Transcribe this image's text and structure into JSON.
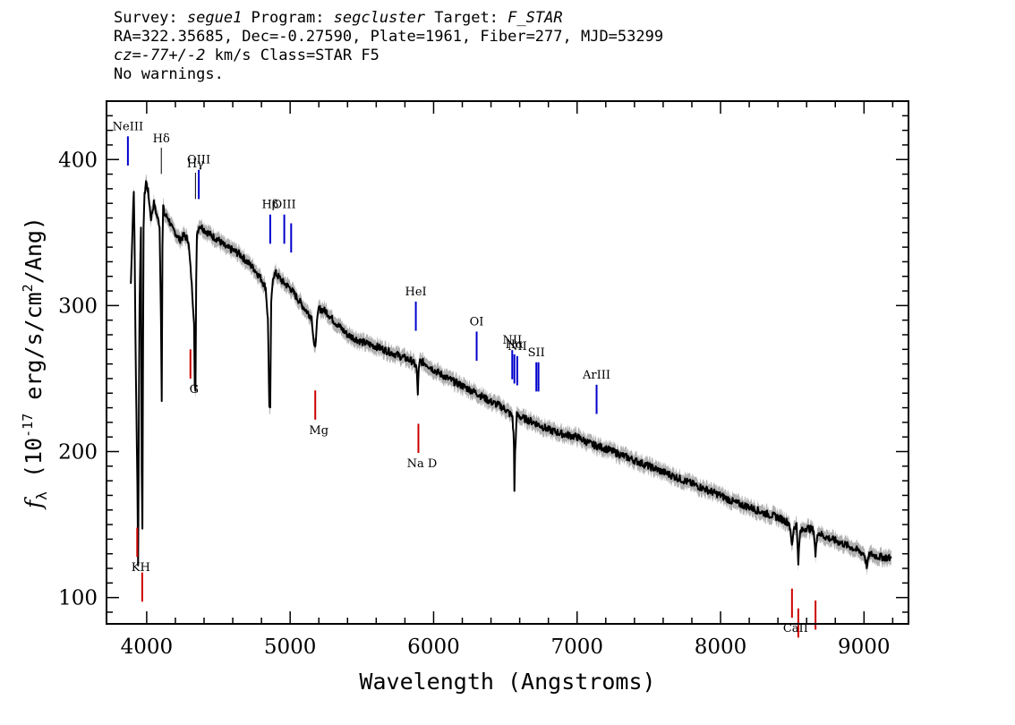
{
  "header": {
    "line1": {
      "survey_label": "Survey: ",
      "survey": "segue1",
      "program_label": " Program: ",
      "program": "segcluster",
      "target_label": " Target: ",
      "target": "F_STAR"
    },
    "line2": "RA=322.35685, Dec=-0.27590, Plate=1961, Fiber=277, MJD=53299",
    "line3": {
      "cz": "cz=-77+/-2",
      "rest": " km/s Class=STAR F5"
    },
    "line4": "No warnings."
  },
  "colors": {
    "spectrum": "#000000",
    "error_band": "#b0b0b0",
    "emission_line": "#0000cc",
    "absorption_line": "#cc0000",
    "axes": "#000000"
  },
  "chart_data": {
    "type": "line",
    "title": "",
    "xlabel": "Wavelength (Angstroms)",
    "ylabel": "f_λ (10^-17 erg/s/cm^2/Ang)",
    "xlim": [
      3720,
      9310
    ],
    "ylim": [
      82,
      440
    ],
    "xticks": [
      4000,
      5000,
      6000,
      7000,
      8000,
      9000
    ],
    "yticks": [
      100,
      200,
      300,
      400
    ],
    "grid": false,
    "series": [
      {
        "name": "",
        "x": [
          3890,
          3900,
          3910,
          3915,
          3925,
          3935,
          3940,
          3950,
          3960,
          3965,
          3970,
          3978,
          3985,
          3995,
          4010,
          4030,
          4050,
          4070,
          4090,
          4100,
          4105,
          4110,
          4115,
          4125,
          4150,
          4180,
          4200,
          4230,
          4260,
          4290,
          4310,
          4330,
          4335,
          4340,
          4345,
          4350,
          4370,
          4400,
          4450,
          4500,
          4550,
          4600,
          4650,
          4700,
          4750,
          4800,
          4830,
          4845,
          4855,
          4861,
          4868,
          4880,
          4900,
          4950,
          5000,
          5050,
          5100,
          5150,
          5168,
          5175,
          5183,
          5200,
          5250,
          5300,
          5350,
          5400,
          5500,
          5600,
          5700,
          5800,
          5850,
          5880,
          5890,
          5896,
          5905,
          5950,
          6000,
          6100,
          6200,
          6300,
          6400,
          6450,
          6500,
          6530,
          6550,
          6560,
          6563,
          6568,
          6580,
          6620,
          6700,
          6800,
          6900,
          7000,
          7100,
          7200,
          7300,
          7400,
          7500,
          7600,
          7700,
          7800,
          7900,
          8000,
          8100,
          8200,
          8300,
          8400,
          8480,
          8498,
          8510,
          8530,
          8542,
          8555,
          8600,
          8650,
          8662,
          8675,
          8720,
          8800,
          8900,
          9000,
          9020,
          9040,
          9100,
          9190
        ],
        "values": [
          315,
          350,
          380,
          345,
          250,
          180,
          122,
          300,
          355,
          190,
          145,
          355,
          375,
          385,
          378,
          360,
          370,
          362,
          355,
          290,
          235,
          340,
          368,
          362,
          360,
          352,
          350,
          345,
          348,
          345,
          320,
          290,
          245,
          240,
          315,
          350,
          355,
          352,
          348,
          345,
          340,
          338,
          335,
          330,
          325,
          318,
          312,
          290,
          230,
          228,
          300,
          320,
          322,
          316,
          312,
          305,
          298,
          292,
          272,
          270,
          285,
          298,
          296,
          290,
          285,
          280,
          275,
          272,
          268,
          264,
          262,
          258,
          240,
          255,
          262,
          260,
          256,
          250,
          245,
          240,
          234,
          232,
          229,
          226,
          224,
          205,
          172,
          200,
          225,
          223,
          220,
          215,
          212,
          210,
          205,
          202,
          198,
          194,
          190,
          186,
          182,
          178,
          174,
          170,
          165,
          162,
          158,
          155,
          151,
          135,
          148,
          150,
          125,
          145,
          148,
          146,
          128,
          145,
          142,
          139,
          135,
          130,
          122,
          130,
          128,
          127
        ]
      }
    ],
    "annotations": {
      "emission": [
        {
          "label": "NeIII",
          "wavelength": 3869
        },
        {
          "label": "OIII",
          "wavelength": 4363
        },
        {
          "label": "Hβ",
          "wavelength": 4861
        },
        {
          "label": "OIII",
          "wavelength": 4959
        },
        {
          "label": "",
          "wavelength": 5007
        },
        {
          "label": "HeI",
          "wavelength": 5876
        },
        {
          "label": "OI",
          "wavelength": 6300
        },
        {
          "label": "NII",
          "wavelength": 6548
        },
        {
          "label": "Hα",
          "wavelength": 6563
        },
        {
          "label": "NII",
          "wavelength": 6583
        },
        {
          "label": "SII",
          "wavelength": 6716
        },
        {
          "label": "",
          "wavelength": 6731
        },
        {
          "label": "ArIII",
          "wavelength": 7136
        }
      ],
      "balmer_absorption": [
        {
          "label": "Hδ",
          "wavelength": 4102
        },
        {
          "label": "Hγ",
          "wavelength": 4340
        }
      ],
      "absorption": [
        {
          "label": "KH",
          "wavelength": 3934
        },
        {
          "label": "",
          "wavelength": 3969
        },
        {
          "label": "G",
          "wavelength": 4305
        },
        {
          "label": "Mg",
          "wavelength": 5175
        },
        {
          "label": "Na D",
          "wavelength": 5894
        },
        {
          "label": "CaII",
          "wavelength": 8498
        },
        {
          "label": "",
          "wavelength": 8542
        },
        {
          "label": "",
          "wavelength": 8662
        }
      ]
    }
  }
}
